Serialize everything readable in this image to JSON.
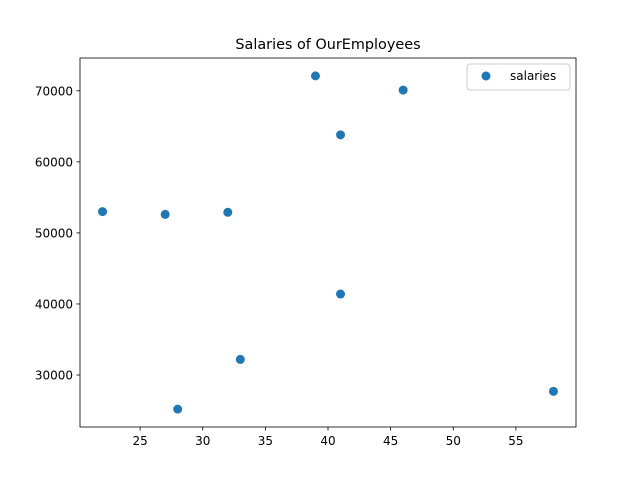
{
  "chart_data": {
    "type": "scatter",
    "title": "Salaries of OurEmployees",
    "xlabel": "",
    "ylabel": "",
    "xlim": [
      20.2,
      59.8
    ],
    "ylim": [
      22685,
      74615
    ],
    "xticks": [
      25,
      30,
      35,
      40,
      45,
      50,
      55
    ],
    "yticks": [
      30000,
      40000,
      50000,
      60000,
      70000
    ],
    "grid": false,
    "legend": {
      "placement": "upper right"
    },
    "series": [
      {
        "name": "salaries",
        "color": "#1f77b4",
        "points": [
          {
            "x": 22,
            "y": 53000
          },
          {
            "x": 27,
            "y": 52600
          },
          {
            "x": 28,
            "y": 25200
          },
          {
            "x": 32,
            "y": 52900
          },
          {
            "x": 33,
            "y": 32200
          },
          {
            "x": 39,
            "y": 72100
          },
          {
            "x": 41,
            "y": 63800
          },
          {
            "x": 41,
            "y": 41400
          },
          {
            "x": 46,
            "y": 70100
          },
          {
            "x": 58,
            "y": 27700
          }
        ]
      }
    ]
  }
}
